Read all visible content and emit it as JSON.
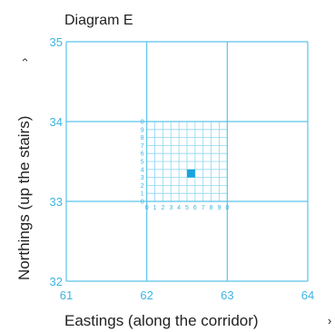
{
  "title": "Diagram E",
  "colors": {
    "grid": "#5bc3ea",
    "fine_grid": "#8fd5f1",
    "tick_text": "#3cb4e3",
    "point": "#1aa3dc",
    "text": "#222222"
  },
  "x_axis": {
    "label": "Eastings (along the corridor)",
    "arrow": "›",
    "range": [
      61,
      64
    ],
    "ticks": [
      "61",
      "62",
      "63",
      "64"
    ]
  },
  "y_axis": {
    "label": "Northings (up the stairs)",
    "arrow": "›",
    "range": [
      32,
      35
    ],
    "ticks": [
      "32",
      "33",
      "34",
      "35"
    ]
  },
  "fine_grid": {
    "x_range": [
      62,
      63
    ],
    "y_range": [
      33,
      34
    ],
    "divisions": 10,
    "x_labels": [
      "0",
      "1",
      "2",
      "3",
      "4",
      "5",
      "6",
      "7",
      "8",
      "9",
      "0"
    ],
    "y_labels": [
      "0",
      "1",
      "2",
      "3",
      "4",
      "5",
      "6",
      "7",
      "8",
      "9",
      "0"
    ]
  },
  "marked_point": {
    "x": 62.55,
    "y": 33.35
  }
}
